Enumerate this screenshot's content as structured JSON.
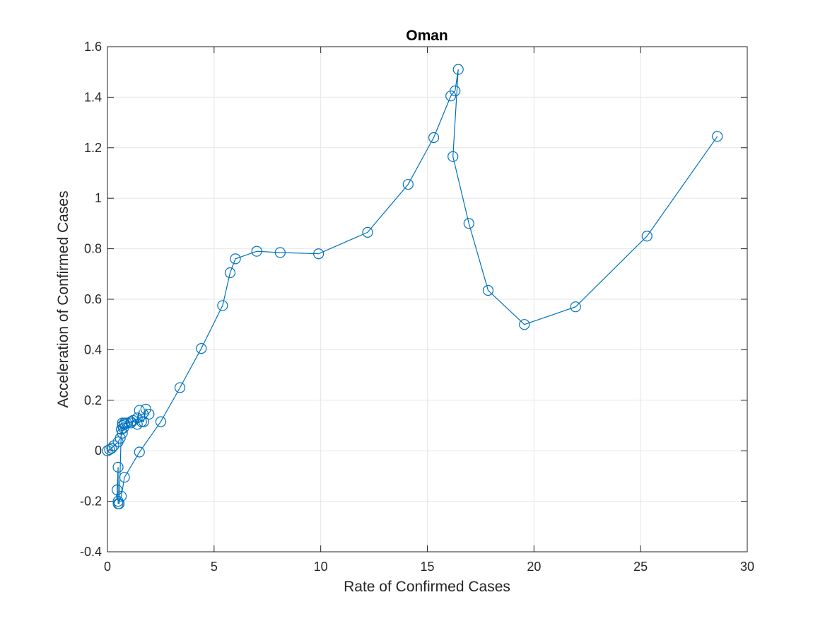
{
  "chart_data": {
    "type": "line",
    "title": "Oman",
    "xlabel": "Rate of Confirmed Cases",
    "ylabel": "Acceleration of Confirmed Cases",
    "xlim": [
      0,
      30
    ],
    "ylim": [
      -0.4,
      1.6
    ],
    "xticks": [
      "0",
      "5",
      "10",
      "15",
      "20",
      "25",
      "30"
    ],
    "yticks": [
      "-0.4",
      "-0.2",
      "0",
      "0.2",
      "0.4",
      "0.6",
      "0.8",
      "1",
      "1.2",
      "1.4",
      "1.6"
    ],
    "grid": true,
    "marker": "circle",
    "color": "#0072BD",
    "series": [
      {
        "x": [
          0.0,
          0.1,
          0.2,
          0.3,
          0.5,
          0.6,
          0.7,
          0.75,
          0.8,
          0.7,
          0.9,
          1.1,
          1.2,
          1.4,
          1.5,
          1.4,
          1.7,
          1.8,
          1.95,
          1.6,
          1.1,
          0.8,
          0.7,
          0.65,
          0.55,
          0.5,
          0.45,
          0.5,
          0.5,
          0.65,
          0.8,
          1.5,
          2.5,
          3.4,
          4.4,
          5.4,
          5.75,
          6.0,
          7.0,
          8.1,
          9.9,
          12.2,
          14.1,
          15.3,
          16.1,
          16.3,
          16.45,
          16.2,
          16.95,
          17.85,
          19.55,
          21.95,
          25.3,
          28.6
        ],
        "y": [
          0.0,
          0.005,
          0.01,
          0.02,
          0.035,
          0.05,
          0.07,
          0.09,
          0.11,
          0.11,
          0.11,
          0.11,
          0.12,
          0.105,
          0.16,
          0.13,
          0.115,
          0.165,
          0.145,
          0.115,
          0.115,
          0.105,
          0.1,
          0.085,
          -0.21,
          -0.2,
          -0.155,
          -0.065,
          -0.21,
          -0.18,
          -0.105,
          -0.005,
          0.115,
          0.25,
          0.405,
          0.575,
          0.705,
          0.76,
          0.79,
          0.785,
          0.78,
          0.865,
          1.055,
          1.24,
          1.405,
          1.425,
          1.51,
          1.165,
          0.9,
          0.635,
          0.5,
          0.57,
          0.85,
          1.245
        ]
      }
    ]
  }
}
